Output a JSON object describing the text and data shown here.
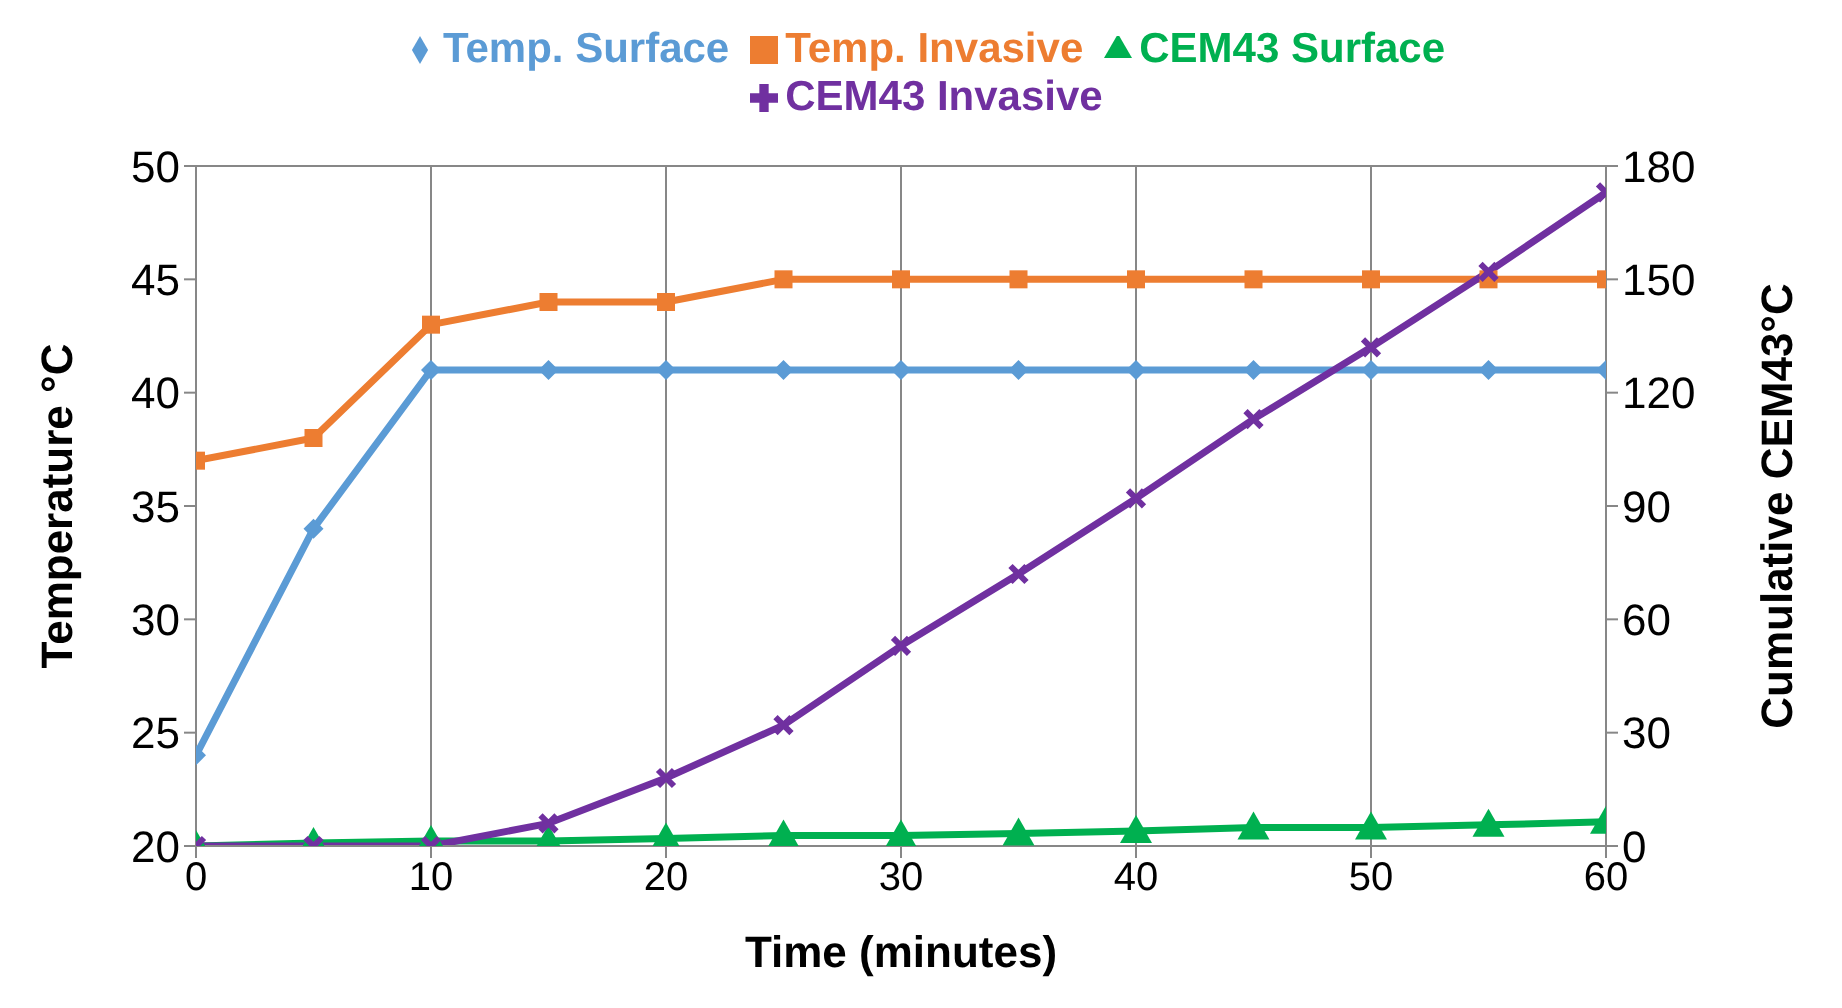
{
  "chart_data": {
    "type": "line",
    "xlabel": "Time (minutes)",
    "ylabel": "Temperature °C",
    "y2label": "Cumulative CEM43°C",
    "x": [
      0,
      5,
      10,
      15,
      20,
      25,
      30,
      35,
      40,
      45,
      50,
      55,
      60
    ],
    "series": [
      {
        "name": "Temp. Surface",
        "color": "#5b9bd5",
        "marker": "diamond",
        "values": [
          24,
          34,
          41,
          41,
          41,
          41,
          41,
          41,
          41,
          41,
          41,
          41,
          41
        ]
      },
      {
        "name": "Temp. Invasive",
        "color": "#ed7d31",
        "marker": "square",
        "values": [
          37,
          38,
          43,
          44,
          44,
          45,
          45,
          45,
          45,
          45,
          45,
          45,
          45
        ]
      },
      {
        "name": "CEM43 Surface",
        "color": "#00b050",
        "marker": "triangle",
        "axis": "y2",
        "values": [
          0,
          0.8,
          1.3,
          1.3,
          2,
          2.8,
          2.8,
          3.3,
          4,
          4.9,
          4.9,
          5.6,
          6.4
        ]
      },
      {
        "name": "CEM43 Invasive",
        "color": "#7030a0",
        "marker": "cross",
        "axis": "y2",
        "values": [
          0,
          0,
          0,
          6,
          18,
          32,
          53,
          72,
          92,
          113,
          132,
          152,
          173
        ]
      }
    ],
    "xlim": [
      0,
      60
    ],
    "xticks": [
      0,
      10,
      20,
      30,
      40,
      50,
      60
    ],
    "ylim": [
      20,
      50
    ],
    "yticks": [
      20,
      25,
      30,
      35,
      40,
      45,
      50
    ],
    "y2lim": [
      0,
      180
    ],
    "y2ticks": [
      0,
      30,
      60,
      90,
      120,
      150,
      180
    ],
    "grid": true,
    "legend": "top"
  }
}
